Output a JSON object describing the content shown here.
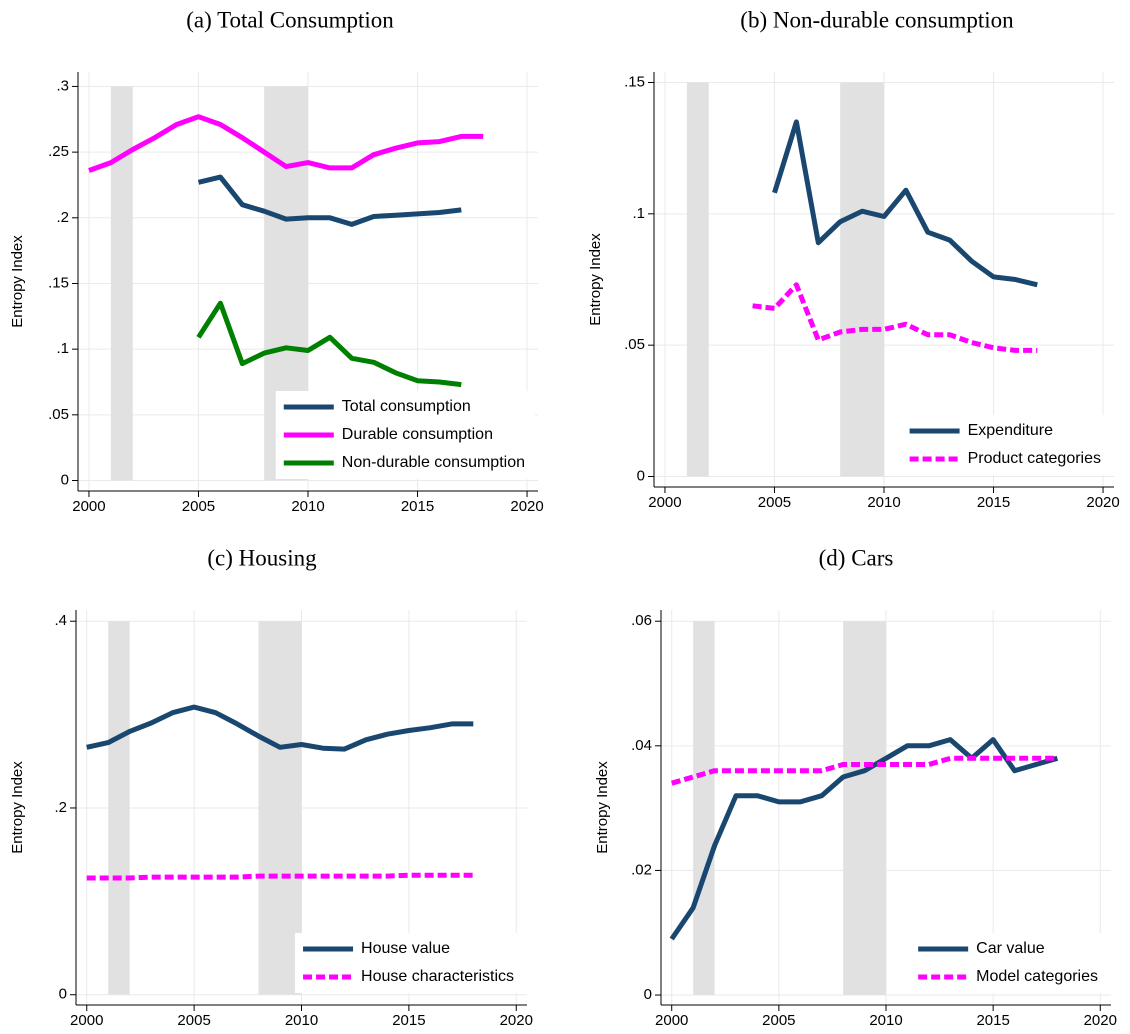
{
  "chart_data": [
    {
      "type": "line",
      "title": "(a) Total Consumption",
      "y_label": "Entropy Index",
      "x": [
        2000,
        2001,
        2002,
        2003,
        2004,
        2005,
        2006,
        2007,
        2008,
        2009,
        2010,
        2011,
        2012,
        2013,
        2014,
        2015,
        2016,
        2017,
        2018
      ],
      "series": [
        {
          "name": "Total consumption",
          "color": "#1a476f",
          "linestyle": "solid",
          "values": [
            null,
            null,
            null,
            null,
            null,
            0.227,
            0.231,
            0.21,
            0.205,
            0.199,
            0.2,
            0.2,
            0.195,
            0.201,
            0.202,
            0.203,
            0.204,
            0.206,
            null
          ]
        },
        {
          "name": "Durable consumption",
          "color": "#ff00ff",
          "linestyle": "solid",
          "values": [
            0.236,
            0.242,
            0.252,
            0.261,
            0.271,
            0.277,
            0.271,
            0.261,
            0.25,
            0.239,
            0.242,
            0.238,
            0.238,
            0.248,
            0.253,
            0.257,
            0.258,
            0.262,
            0.262
          ]
        },
        {
          "name": "Non-durable consumption",
          "color": "#008000",
          "linestyle": "solid",
          "values": [
            null,
            null,
            null,
            null,
            null,
            0.109,
            0.135,
            0.089,
            0.097,
            0.101,
            0.099,
            0.109,
            0.093,
            0.09,
            0.082,
            0.076,
            0.075,
            0.073,
            null
          ]
        }
      ],
      "shaded": [
        [
          2001,
          2002
        ],
        [
          2008,
          2010
        ]
      ],
      "xlim": [
        1999.5,
        2020.5
      ],
      "xticks": [
        2000,
        2005,
        2010,
        2015,
        2020
      ],
      "ylim": [
        -0.008,
        0.311
      ],
      "yticks": [
        0,
        {
          "value": 0.05,
          "label": ".05"
        },
        {
          "value": 0.1,
          "label": ".1"
        },
        {
          "value": 0.15,
          "label": ".15"
        },
        {
          "value": 0.2,
          "label": ".2"
        },
        {
          "value": 0.25,
          "label": ".25"
        },
        {
          "value": 0.3,
          "label": ".3"
        }
      ],
      "grid": true,
      "legend": "lower right"
    },
    {
      "type": "line",
      "title": "(b) Non-durable consumption",
      "y_label": "Entropy Index",
      "x": [
        2000,
        2001,
        2002,
        2003,
        2004,
        2005,
        2006,
        2007,
        2008,
        2009,
        2010,
        2011,
        2012,
        2013,
        2014,
        2015,
        2016,
        2017,
        2018
      ],
      "series": [
        {
          "name": "Expenditure",
          "color": "#1a476f",
          "linestyle": "solid",
          "values": [
            null,
            null,
            null,
            null,
            null,
            0.108,
            0.135,
            0.089,
            0.097,
            0.101,
            0.099,
            0.109,
            0.093,
            0.09,
            0.082,
            0.076,
            0.075,
            0.073,
            null
          ]
        },
        {
          "name": "Product categories",
          "color": "#ff00ff",
          "linestyle": "dashed",
          "values": [
            null,
            null,
            null,
            null,
            0.065,
            0.064,
            0.073,
            0.052,
            0.055,
            0.056,
            0.056,
            0.058,
            0.054,
            0.054,
            0.051,
            0.049,
            0.048,
            0.048,
            null
          ]
        }
      ],
      "shaded": [
        [
          2001,
          2002
        ],
        [
          2008,
          2010
        ]
      ],
      "xlim": [
        1999.5,
        2020.5
      ],
      "xticks": [
        2000,
        2005,
        2010,
        2015,
        2020
      ],
      "ylim": [
        -0.004,
        0.154
      ],
      "yticks": [
        0,
        {
          "value": 0.05,
          "label": ".05"
        },
        {
          "value": 0.1,
          "label": ".1"
        },
        {
          "value": 0.15,
          "label": ".15"
        }
      ],
      "grid": true,
      "legend": "lower right"
    },
    {
      "type": "line",
      "title": "(c) Housing",
      "y_label": "Entropy Index",
      "x": [
        2000,
        2001,
        2002,
        2003,
        2004,
        2005,
        2006,
        2007,
        2008,
        2009,
        2010,
        2011,
        2012,
        2013,
        2014,
        2015,
        2016,
        2017,
        2018
      ],
      "series": [
        {
          "name": "House value",
          "color": "#1a476f",
          "linestyle": "solid",
          "values": [
            0.265,
            0.27,
            0.282,
            0.291,
            0.302,
            0.308,
            0.302,
            0.29,
            0.277,
            0.265,
            0.268,
            0.264,
            0.263,
            0.273,
            0.279,
            0.283,
            0.286,
            0.29,
            0.29
          ]
        },
        {
          "name": "House characteristics",
          "color": "#ff00ff",
          "linestyle": "dashed",
          "values": [
            0.125,
            0.125,
            0.125,
            0.126,
            0.126,
            0.126,
            0.126,
            0.126,
            0.127,
            0.127,
            0.127,
            0.127,
            0.127,
            0.127,
            0.127,
            0.128,
            0.128,
            0.128,
            0.128
          ]
        }
      ],
      "shaded": [
        [
          2001,
          2002
        ],
        [
          2008,
          2010
        ]
      ],
      "xlim": [
        1999.5,
        2020.5
      ],
      "xticks": [
        2000,
        2005,
        2010,
        2015,
        2020
      ],
      "ylim": [
        -0.011,
        0.412
      ],
      "yticks": [
        0,
        {
          "value": 0.2,
          "label": ".2"
        },
        {
          "value": 0.4,
          "label": ".4"
        }
      ],
      "grid": true,
      "legend": "lower right"
    },
    {
      "type": "line",
      "title": "(d) Cars",
      "y_label": "Entropy Index",
      "x": [
        2000,
        2001,
        2002,
        2003,
        2004,
        2005,
        2006,
        2007,
        2008,
        2009,
        2010,
        2011,
        2012,
        2013,
        2014,
        2015,
        2016,
        2017,
        2018
      ],
      "series": [
        {
          "name": "Car value",
          "color": "#1a476f",
          "linestyle": "solid",
          "values": [
            0.009,
            0.014,
            0.024,
            0.032,
            0.032,
            0.031,
            0.031,
            0.032,
            0.035,
            0.036,
            0.038,
            0.04,
            0.04,
            0.041,
            0.038,
            0.041,
            0.036,
            0.037,
            0.038
          ]
        },
        {
          "name": "Model categories",
          "color": "#ff00ff",
          "linestyle": "dashed",
          "values": [
            0.034,
            0.035,
            0.036,
            0.036,
            0.036,
            0.036,
            0.036,
            0.036,
            0.037,
            0.037,
            0.037,
            0.037,
            0.037,
            0.038,
            0.038,
            0.038,
            0.038,
            0.038,
            0.038
          ]
        }
      ],
      "shaded": [
        [
          2001,
          2002
        ],
        [
          2008,
          2010
        ]
      ],
      "xlim": [
        1999.5,
        2020.5
      ],
      "xticks": [
        2000,
        2005,
        2010,
        2015,
        2020
      ],
      "ylim": [
        -0.0016,
        0.0618
      ],
      "yticks": [
        0,
        {
          "value": 0.02,
          "label": ".02"
        },
        {
          "value": 0.04,
          "label": ".04"
        },
        {
          "value": 0.06,
          "label": ".06"
        }
      ],
      "grid": true,
      "legend": "lower right"
    }
  ]
}
